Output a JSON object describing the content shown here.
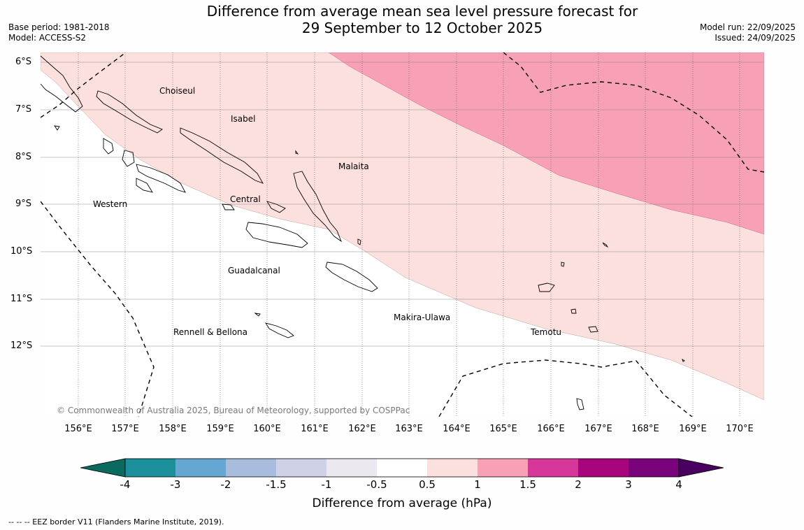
{
  "title": {
    "line1": "Difference from average mean sea level pressure forecast for",
    "line2": "29 September to 12 October 2025"
  },
  "meta": {
    "base_period": "Base period: 1981-2018",
    "model": "Model: ACCESS-S2",
    "model_run": "Model run: 22/09/2025",
    "issued": "Issued: 24/09/2025"
  },
  "map": {
    "latitude_labels": [
      "6°S",
      "7°S",
      "8°S",
      "9°S",
      "10°S",
      "11°S",
      "12°S"
    ],
    "longitude_labels": [
      "156°E",
      "157°E",
      "158°E",
      "159°E",
      "160°E",
      "161°E",
      "162°E",
      "163°E",
      "164°E",
      "165°E",
      "166°E",
      "167°E",
      "168°E",
      "169°E",
      "170°E"
    ],
    "provinces": [
      "Choiseul",
      "Isabel",
      "Malaita",
      "Western",
      "Central",
      "Guadalcanal",
      "Makira-Ulawa",
      "Rennell & Bellona",
      "Temotu"
    ],
    "anomaly_fill": {
      "band_0_5_to_1": "#fce0dd",
      "band_1_to_1_5": "#f8a0b6"
    },
    "copyright": "© Commonwealth of Australia 2025, Bureau of Meteorology, supported by COSPPac"
  },
  "colorbar": {
    "label": "Difference from average (hPa)",
    "ticks": [
      "-4",
      "-3",
      "-2",
      "-1.5",
      "-1",
      "-0.5",
      "0.5",
      "1",
      "1.5",
      "2",
      "3",
      "4"
    ],
    "colors": [
      "#1b8f9a",
      "#64a7d2",
      "#a8bcdd",
      "#cfd1e7",
      "#ebe9ef",
      "#ffffff",
      "#fce0dd",
      "#f8a0b6",
      "#d8379a",
      "#a8047e",
      "#78037b"
    ],
    "low_extend_color": "#0b6a5f",
    "high_extend_color": "#4a0060"
  },
  "footnote": "--  --  -- EEZ border V11 (Flanders Marine Institute, 2019)."
}
